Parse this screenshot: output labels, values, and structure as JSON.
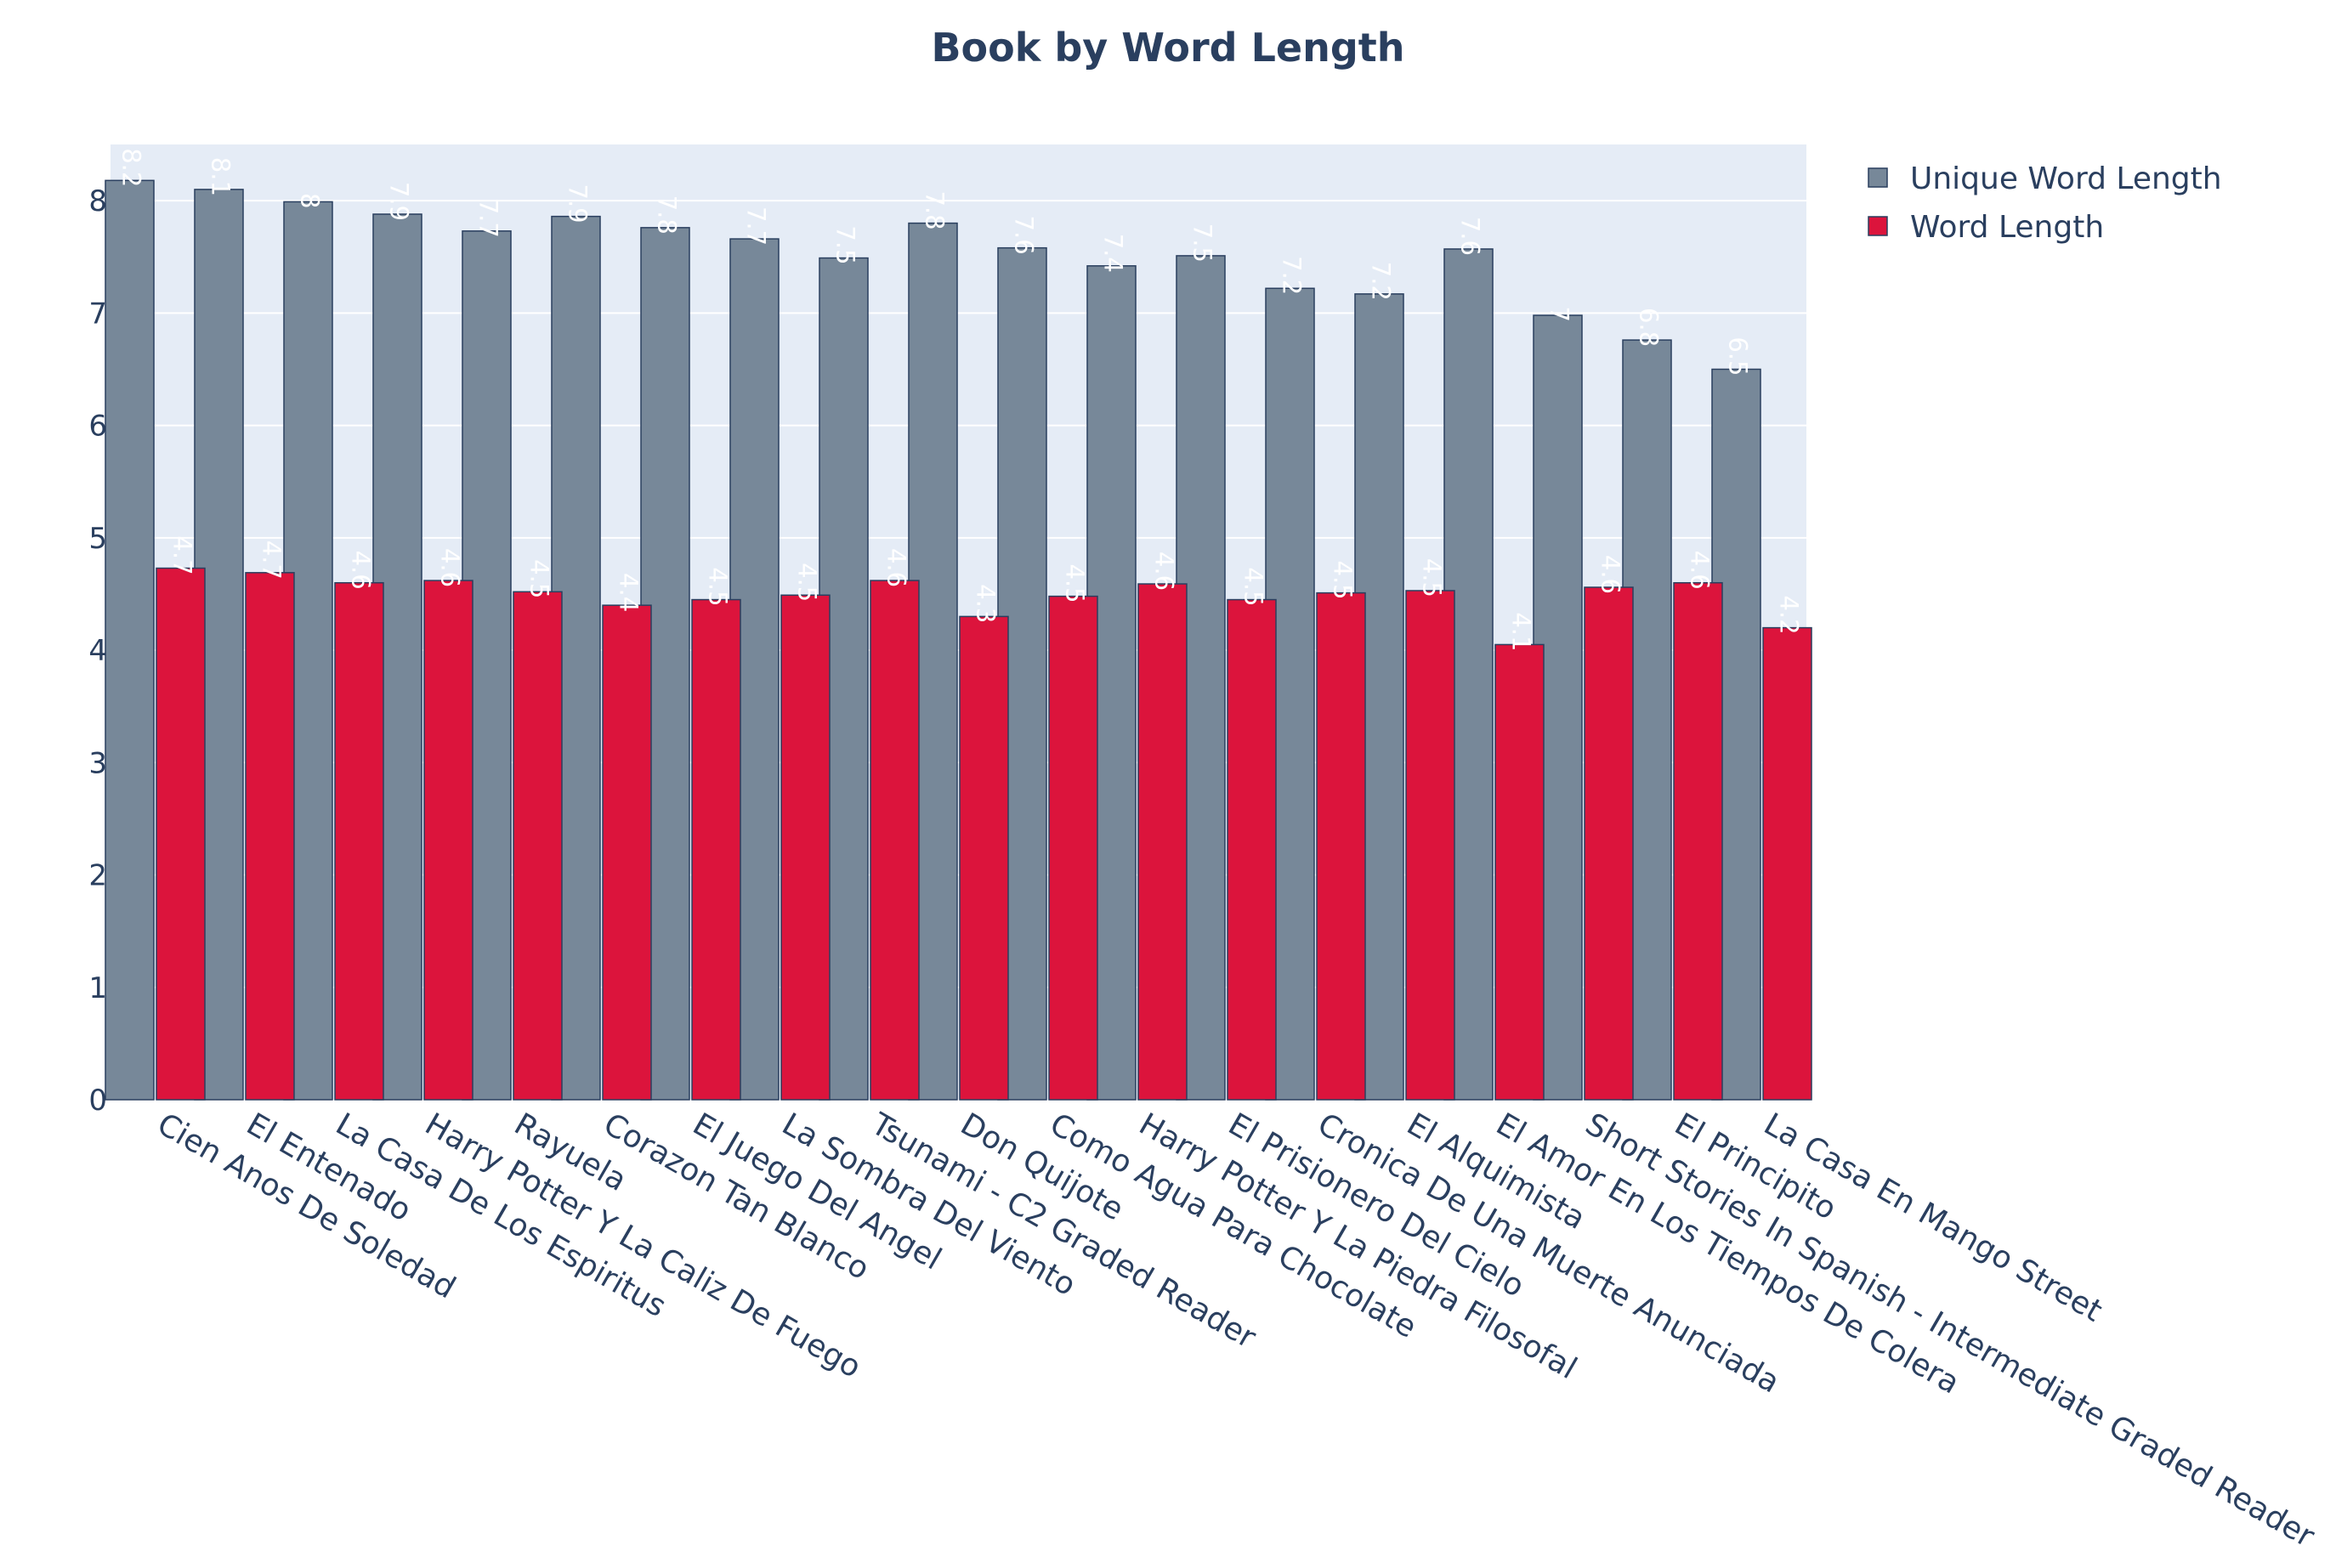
{
  "chart_data": {
    "type": "bar",
    "title": "Book by Word Length",
    "xlabel": "",
    "ylabel": "",
    "ylim": [
      0,
      8.5
    ],
    "yticks": [
      "0",
      "1",
      "2",
      "3",
      "4",
      "5",
      "6",
      "7",
      "8"
    ],
    "grid": true,
    "legend_position": "top-right",
    "categories": [
      "Cien Anos De Soledad",
      "El Entenado",
      "La Casa De Los Espiritus",
      "Harry Potter Y La Caliz De Fuego",
      "Rayuela",
      "Corazon Tan Blanco",
      "El Juego Del Angel",
      "La Sombra Del Viento",
      "Tsunami - C2 Graded Reader",
      "Don Quijote",
      "Como Agua Para Chocolate",
      "Harry Potter Y La Piedra Filosofal",
      "El Prisionero Del Cielo",
      "Cronica De Una Muerte Anunciada",
      "El Alquimista",
      "El Amor En Los Tiempos De Colera",
      "Short Stories In Spanish - Intermediate Graded Reader",
      "El Principito",
      "La Casa En Mango Street"
    ],
    "series": [
      {
        "name": "Unique Word Length",
        "color": "#778899",
        "values": [
          8.18,
          8.1,
          7.99,
          7.88,
          7.73,
          7.86,
          7.76,
          7.66,
          7.49,
          7.8,
          7.58,
          7.42,
          7.51,
          7.22,
          7.17,
          7.57,
          6.98,
          6.76,
          6.5
        ],
        "labels": [
          "8.2",
          "8.1",
          "8",
          "7.9",
          "7.7",
          "7.9",
          "7.8",
          "7.7",
          "7.5",
          "7.8",
          "7.6",
          "7.4",
          "7.5",
          "7.2",
          "7.2",
          "7.6",
          "7",
          "6.8",
          "6.5"
        ]
      },
      {
        "name": "Word Length",
        "color": "#dc143c",
        "values": [
          4.73,
          4.69,
          4.6,
          4.62,
          4.52,
          4.4,
          4.45,
          4.49,
          4.62,
          4.3,
          4.48,
          4.59,
          4.45,
          4.51,
          4.53,
          4.05,
          4.56,
          4.6,
          4.2
        ],
        "labels": [
          "4.7",
          "4.7",
          "4.6",
          "4.6",
          "4.5",
          "4.4",
          "4.5",
          "4.5",
          "4.6",
          "4.3",
          "4.5",
          "4.6",
          "4.5",
          "4.5",
          "4.5",
          "4.1",
          "4.6",
          "4.6",
          "4.2"
        ]
      }
    ]
  }
}
